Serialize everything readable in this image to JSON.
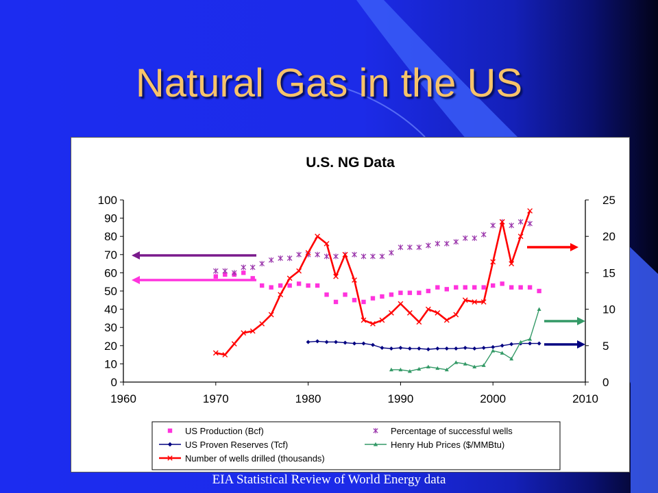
{
  "slide": {
    "title": "Natural Gas in the US",
    "source": "EIA Statistical Review of World Energy data",
    "colors": {
      "title": "#f7c36a",
      "background": "#1c2cf0"
    }
  },
  "chart_data": {
    "type": "line",
    "title": "U.S. NG Data",
    "xlabel": "",
    "ylabel": "",
    "xlim": [
      1960,
      2010
    ],
    "x_ticks": [
      1960,
      1970,
      1980,
      1990,
      2000,
      2010
    ],
    "ylim_left": [
      0,
      100
    ],
    "y_ticks_left": [
      0,
      10,
      20,
      30,
      40,
      50,
      60,
      70,
      80,
      90,
      100
    ],
    "ylim_right": [
      0,
      25
    ],
    "y_ticks_right": [
      0,
      5,
      10,
      15,
      20,
      25
    ],
    "grid": false,
    "legend": "bottom",
    "series": [
      {
        "name": "US Production (Bcf)",
        "axis": "left",
        "marker": "square",
        "line": false,
        "color": "#ff33dd",
        "x": [
          1970,
          1971,
          1972,
          1973,
          1974,
          1975,
          1976,
          1977,
          1978,
          1979,
          1980,
          1981,
          1982,
          1983,
          1984,
          1985,
          1986,
          1987,
          1988,
          1989,
          1990,
          1991,
          1992,
          1993,
          1994,
          1995,
          1996,
          1997,
          1998,
          1999,
          2000,
          2001,
          2002,
          2003,
          2004,
          2005
        ],
        "y": [
          58,
          59,
          59,
          60,
          57,
          53,
          52,
          53,
          53,
          54,
          53,
          53,
          48,
          44,
          48,
          45,
          44,
          46,
          47,
          48,
          49,
          49,
          49,
          50,
          52,
          51,
          52,
          52,
          52,
          52,
          53,
          54,
          52,
          52,
          52,
          50
        ]
      },
      {
        "name": "Percentage of successful wells",
        "axis": "left",
        "marker": "asterisk",
        "line": false,
        "color": "#9933aa",
        "x": [
          1970,
          1971,
          1972,
          1973,
          1974,
          1975,
          1976,
          1977,
          1978,
          1979,
          1980,
          1981,
          1982,
          1983,
          1984,
          1985,
          1986,
          1987,
          1988,
          1989,
          1990,
          1991,
          1992,
          1993,
          1994,
          1995,
          1996,
          1997,
          1998,
          1999,
          2000,
          2001,
          2002,
          2003,
          2004
        ],
        "y": [
          61,
          61,
          60,
          63,
          63,
          65,
          67,
          68,
          68,
          70,
          70,
          70,
          69,
          69,
          70,
          70,
          69,
          69,
          69,
          71,
          74,
          74,
          74,
          75,
          76,
          76,
          77,
          79,
          79,
          81,
          86,
          88,
          86,
          88,
          87
        ]
      },
      {
        "name": "US Proven Reserves (Tcf)",
        "axis": "right",
        "marker": "diamond",
        "line": true,
        "color": "#000080",
        "x": [
          1980,
          1981,
          1982,
          1983,
          1984,
          1985,
          1986,
          1987,
          1988,
          1989,
          1990,
          1991,
          1992,
          1993,
          1994,
          1995,
          1996,
          1997,
          1998,
          1999,
          2000,
          2001,
          2002,
          2003,
          2004,
          2005
        ],
        "y": [
          5.5,
          5.6,
          5.5,
          5.5,
          5.4,
          5.3,
          5.3,
          5.1,
          4.7,
          4.6,
          4.7,
          4.6,
          4.6,
          4.5,
          4.6,
          4.6,
          4.6,
          4.7,
          4.6,
          4.7,
          4.8,
          5.0,
          5.2,
          5.3,
          5.3,
          5.3
        ]
      },
      {
        "name": "Henry Hub Prices ($/MMBtu)",
        "axis": "right",
        "marker": "triangle",
        "line": true,
        "color": "#339966",
        "x": [
          1989,
          1990,
          1991,
          1992,
          1993,
          1994,
          1995,
          1996,
          1997,
          1998,
          1999,
          2000,
          2001,
          2002,
          2003,
          2004,
          2005
        ],
        "y": [
          1.7,
          1.7,
          1.5,
          1.8,
          2.1,
          1.9,
          1.7,
          2.7,
          2.5,
          2.1,
          2.3,
          4.3,
          4.0,
          3.2,
          5.5,
          5.9,
          10.0
        ]
      },
      {
        "name": "Number of wells drilled (thousands)",
        "axis": "left",
        "marker": "x",
        "line": true,
        "color": "#ff0000",
        "x": [
          1970,
          1971,
          1972,
          1973,
          1974,
          1975,
          1976,
          1977,
          1978,
          1979,
          1980,
          1981,
          1982,
          1983,
          1984,
          1985,
          1986,
          1987,
          1988,
          1989,
          1990,
          1991,
          1992,
          1993,
          1994,
          1995,
          1996,
          1997,
          1998,
          1999,
          2000,
          2001,
          2002,
          2003,
          2004
        ],
        "y": [
          16,
          15,
          21,
          27,
          28,
          32,
          37,
          48,
          57,
          61,
          71,
          80,
          76,
          58,
          70,
          56,
          34,
          32,
          34,
          38,
          43,
          38,
          33,
          40,
          38,
          34,
          37,
          45,
          44,
          44,
          66,
          88,
          65,
          80,
          94
        ]
      }
    ],
    "arrows": [
      {
        "direction": "left",
        "color": "#7a1a8c"
      },
      {
        "direction": "left",
        "color": "#ff33dd"
      },
      {
        "direction": "right",
        "color": "#ff0000"
      },
      {
        "direction": "right",
        "color": "#339966"
      },
      {
        "direction": "right",
        "color": "#000080"
      }
    ]
  }
}
